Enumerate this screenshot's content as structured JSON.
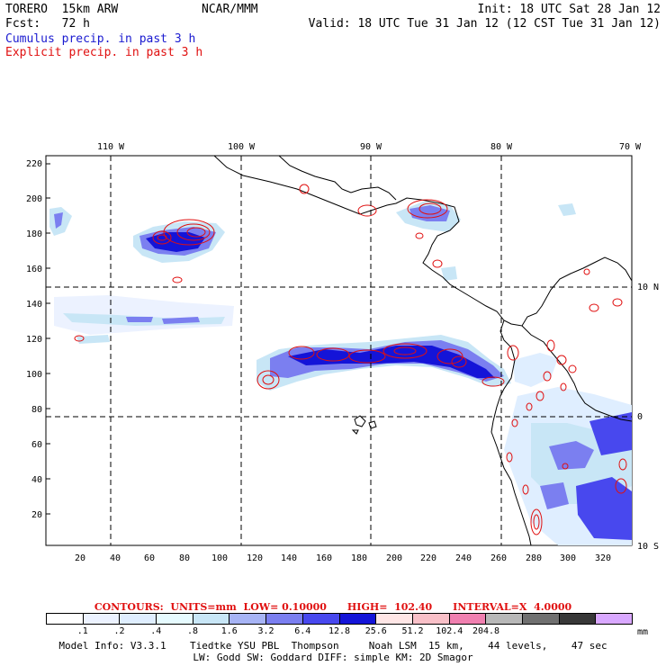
{
  "header": {
    "model": "TORERO  15km ARW",
    "org": "NCAR/MMM",
    "init": "Init: 18 UTC Sat 28 Jan 12",
    "fcst": "Fcst:   72 h",
    "valid": "Valid: 18 UTC Tue 31 Jan 12 (12 CST Tue 31 Jan 12)",
    "field1": "Cumulus precip. in past 3 h",
    "field2": "Explicit precip. in past 3 h"
  },
  "map": {
    "lon_labels": [
      "110 W",
      "100 W",
      "90 W",
      "80 W",
      "70 W"
    ],
    "lat_labels": [
      "10 N",
      "0",
      "10 S"
    ],
    "y_ticks": [
      "220",
      "200",
      "180",
      "160",
      "140",
      "120",
      "100",
      "80",
      "60",
      "40",
      "20"
    ],
    "x_ticks": [
      "20",
      "40",
      "60",
      "80",
      "100",
      "120",
      "140",
      "160",
      "180",
      "200",
      "220",
      "240",
      "260",
      "280",
      "300",
      "320"
    ]
  },
  "contours": {
    "text": "CONTOURS:  UNITS=mm  LOW= 0.10000      HIGH=  102.40      INTERVAL=X  4.0000"
  },
  "colorbar": {
    "colors": [
      "#ffffff",
      "#ecf2ff",
      "#dfeeff",
      "#e6fbff",
      "#c8e6f6",
      "#a7b4f5",
      "#7b7ff0",
      "#4848ee",
      "#1414d8",
      "#ffe6e6",
      "#f9c0c8",
      "#f080b0",
      "#b8b8b8",
      "#707070",
      "#383838",
      "#d9a8ff"
    ],
    "labels": [
      ".1",
      ".2",
      ".4",
      ".8",
      "1.6",
      "3.2",
      "6.4",
      "12.8",
      "25.6",
      "51.2",
      "102.4",
      "204.8"
    ],
    "units": "mm"
  },
  "footer": {
    "line1": "Model Info: V3.3.1    Tiedtke YSU PBL  Thompson     Noah LSM  15 km,    44 levels,    47 sec",
    "line2": "LW: Godd SW: Goddard DIFF: simple KM: 2D Smagor"
  }
}
